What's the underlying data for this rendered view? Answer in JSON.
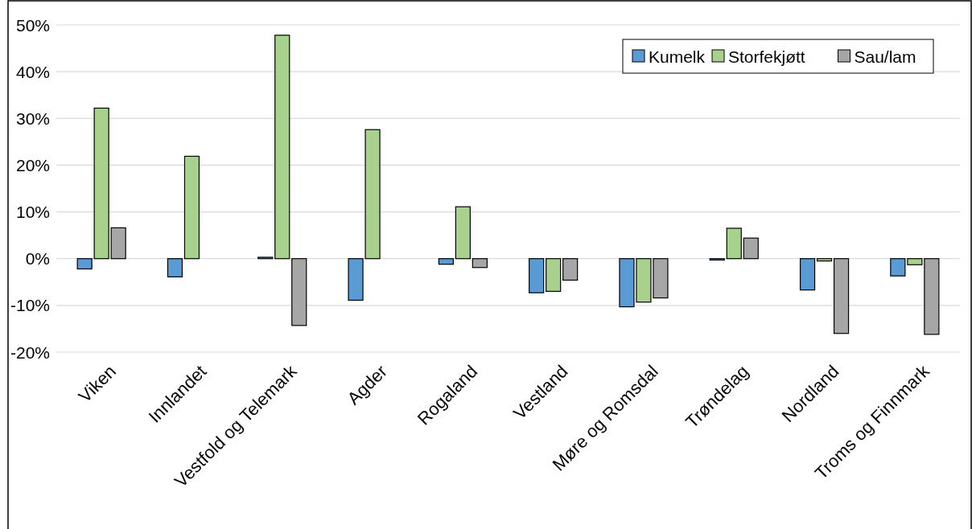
{
  "chart_data": {
    "type": "bar",
    "categories": [
      "Viken",
      "Innlandet",
      "Vestfold og Telemark",
      "Agder",
      "Rogaland",
      "Vestland",
      "Møre og Romsdal",
      "Trøndelag",
      "Nordland",
      "Troms og Finnmark"
    ],
    "series": [
      {
        "name": "Kumelk",
        "color": "#5b9bd5",
        "values": [
          -2.2,
          -3.9,
          0.3,
          -8.9,
          -1.2,
          -7.3,
          -10.3,
          -0.3,
          -6.7,
          -3.7
        ]
      },
      {
        "name": "Storfekjøtt",
        "color": "#a9d18e",
        "values": [
          32.2,
          21.9,
          47.8,
          27.6,
          11.1,
          -7.0,
          -9.3,
          6.5,
          -0.5,
          -1.3
        ]
      },
      {
        "name": "Sau/lam",
        "color": "#a6a6a6",
        "values": [
          6.6,
          0,
          -14.3,
          0,
          -1.9,
          -4.6,
          -8.4,
          4.4,
          -16.0,
          -16.2
        ]
      }
    ],
    "ylim": [
      -20,
      50
    ],
    "yticks": [
      {
        "value": -20,
        "label": "-20%"
      },
      {
        "value": -10,
        "label": "-10%"
      },
      {
        "value": 0,
        "label": "0%"
      },
      {
        "value": 10,
        "label": "10%"
      },
      {
        "value": 20,
        "label": "20%"
      },
      {
        "value": 30,
        "label": "30%"
      },
      {
        "value": 40,
        "label": "40%"
      },
      {
        "value": 50,
        "label": "50%"
      }
    ],
    "grid": "y",
    "legend": "top right"
  }
}
